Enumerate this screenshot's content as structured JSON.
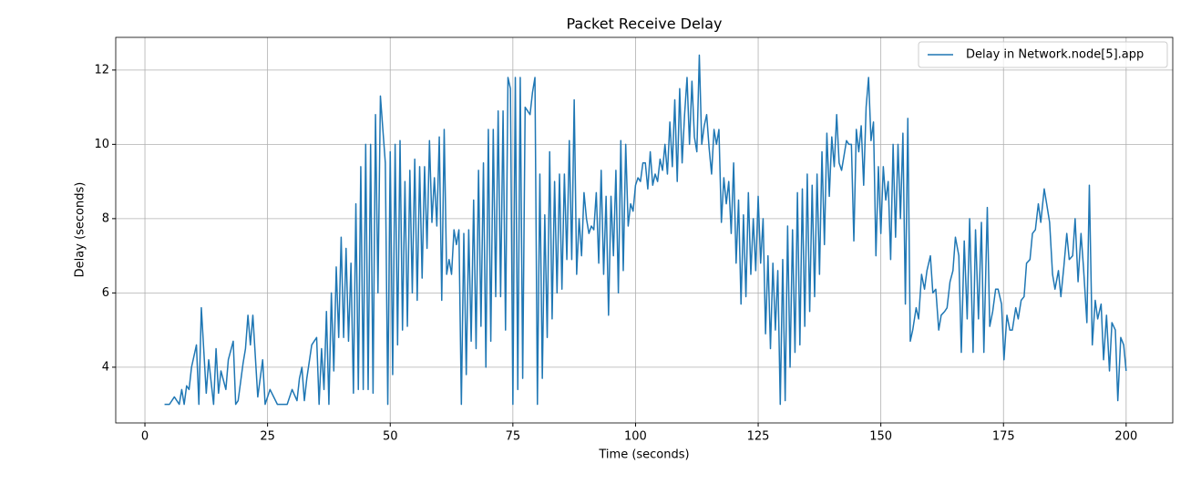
{
  "chart_data": {
    "type": "line",
    "title": "Packet Receive Delay",
    "x_label": "Time (seconds)",
    "y_label": "Delay (seconds)",
    "xlim": [
      -5.95,
      209.5
    ],
    "ylim": [
      2.5,
      12.88
    ],
    "xticks": [
      0,
      25,
      50,
      75,
      100,
      125,
      150,
      175,
      200
    ],
    "yticks": [
      4,
      6,
      8,
      10,
      12
    ],
    "grid": true,
    "legend": "upper right",
    "x": [
      4,
      5,
      6,
      7,
      7.5,
      8,
      8.5,
      9,
      9.5,
      10.5,
      11,
      11.5,
      12.5,
      13,
      14,
      14.5,
      15,
      15.5,
      16.5,
      17,
      18,
      18.5,
      19,
      20,
      20.5,
      21,
      21.5,
      22,
      23,
      24,
      24.5,
      25.5,
      27,
      29,
      30,
      31,
      31.5,
      32,
      32.5,
      33,
      34,
      35,
      35.5,
      36,
      36.5,
      37,
      37.5,
      38,
      38.5,
      39,
      39.5,
      40,
      40.5,
      41,
      41.5,
      42,
      42.5,
      43,
      43.5,
      44,
      44.5,
      45,
      45.5,
      46,
      46.5,
      47,
      47.5,
      48,
      48.5,
      49,
      49.5,
      50,
      50.5,
      51,
      51.5,
      52,
      52.5,
      53,
      53.5,
      54,
      54.5,
      55,
      55.5,
      56,
      56.5,
      57,
      57.5,
      58,
      58.5,
      59,
      59.5,
      60,
      60.5,
      61,
      61.5,
      62,
      62.5,
      63,
      63.5,
      64,
      64.5,
      65,
      65.5,
      66,
      66.5,
      67,
      67.5,
      68,
      68.5,
      69,
      69.5,
      70,
      70.5,
      71,
      71.5,
      72,
      72.5,
      73,
      73.5,
      74,
      74.5,
      75,
      75.5,
      76,
      76.5,
      77,
      77.5,
      78,
      78.5,
      79,
      79.5,
      80,
      80.5,
      81,
      81.5,
      82,
      82.5,
      83,
      83.5,
      84,
      84.5,
      85,
      85.5,
      86,
      86.5,
      87,
      87.5,
      88,
      88.5,
      89,
      89.5,
      90,
      90.5,
      91,
      91.5,
      92,
      92.5,
      93,
      93.5,
      94,
      94.5,
      95,
      95.5,
      96,
      96.5,
      97,
      97.5,
      98,
      98.5,
      99,
      99.5,
      100,
      100.5,
      101,
      101.5,
      102,
      102.5,
      103,
      103.5,
      104,
      104.5,
      105,
      105.5,
      106,
      106.5,
      107,
      107.5,
      108,
      108.5,
      109,
      109.5,
      110,
      110.5,
      111,
      111.5,
      112,
      112.5,
      113,
      113.5,
      114,
      114.5,
      115,
      115.5,
      116,
      116.5,
      117,
      117.5,
      118,
      118.5,
      119,
      119.5,
      120,
      120.5,
      121,
      121.5,
      122,
      122.5,
      123,
      123.5,
      124,
      124.5,
      125,
      125.5,
      126,
      126.5,
      127,
      127.5,
      128,
      128.5,
      129,
      129.5,
      130,
      130.5,
      131,
      131.5,
      132,
      132.5,
      133,
      133.5,
      134,
      134.5,
      135,
      135.5,
      136,
      136.5,
      137,
      137.5,
      138,
      138.5,
      139,
      139.5,
      140,
      140.5,
      141,
      141.5,
      142,
      142.5,
      143,
      143.5,
      144,
      144.5,
      145,
      145.5,
      146,
      146.5,
      147,
      147.5,
      148,
      148.5,
      149,
      149.5,
      150,
      150.5,
      151,
      151.5,
      152,
      152.5,
      153,
      153.5,
      154,
      154.5,
      155,
      155.5,
      156,
      156.5,
      157.2,
      157.7,
      158.3,
      158.9,
      159.4,
      160.1,
      160.6,
      161.2,
      161.8,
      162.3,
      163.0,
      163.5,
      164.1,
      164.7,
      165.2,
      165.9,
      166.4,
      167.0,
      167.6,
      168.1,
      168.8,
      169.3,
      169.9,
      170.5,
      171.0,
      171.7,
      172.2,
      172.8,
      173.4,
      173.9,
      174.6,
      175.1,
      175.7,
      176.3,
      176.8,
      177.5,
      178.0,
      178.6,
      179.2,
      179.7,
      180.4,
      180.9,
      181.5,
      182.1,
      182.6,
      183.3,
      183.8,
      184.4,
      185.0,
      185.5,
      186.2,
      186.7,
      187.3,
      187.9,
      188.4,
      189.1,
      189.6,
      190.2,
      190.8,
      191.3,
      192.0,
      192.5,
      193.1,
      193.7,
      194.2,
      194.9,
      195.4,
      196.0,
      196.6,
      197.1,
      197.8,
      198.3,
      198.9,
      199.5,
      200.0
    ],
    "series": [
      {
        "name": "Delay in Network.node[5].app",
        "color": "#1f77b4",
        "values": [
          3.0,
          3.0,
          3.2,
          3.0,
          3.4,
          3.0,
          3.5,
          3.4,
          4.0,
          4.6,
          3.0,
          5.6,
          3.3,
          4.2,
          3.0,
          4.5,
          3.3,
          3.9,
          3.4,
          4.2,
          4.7,
          3.0,
          3.1,
          4.1,
          4.5,
          5.4,
          4.6,
          5.4,
          3.2,
          4.2,
          3.0,
          3.4,
          3.0,
          3.0,
          3.4,
          3.1,
          3.7,
          4.0,
          3.1,
          3.7,
          4.6,
          4.8,
          3.0,
          4.5,
          3.4,
          5.5,
          3.0,
          6.0,
          3.9,
          6.7,
          4.8,
          7.5,
          4.8,
          7.2,
          4.7,
          6.8,
          3.3,
          8.4,
          3.4,
          9.4,
          3.4,
          10.0,
          3.4,
          10.0,
          3.3,
          10.8,
          6.0,
          11.3,
          10.4,
          9.5,
          3.0,
          9.8,
          3.8,
          10.0,
          4.6,
          10.1,
          5.0,
          9.0,
          5.1,
          9.3,
          6.0,
          9.6,
          5.8,
          9.4,
          6.4,
          9.4,
          7.2,
          10.1,
          7.9,
          9.1,
          7.8,
          10.2,
          5.8,
          10.4,
          6.5,
          6.9,
          6.5,
          7.7,
          7.3,
          7.7,
          3.0,
          7.6,
          3.8,
          7.7,
          4.7,
          8.5,
          4.5,
          9.3,
          5.1,
          9.5,
          4.0,
          10.4,
          4.7,
          10.4,
          5.9,
          10.9,
          5.9,
          10.9,
          5.0,
          11.8,
          11.5,
          3.0,
          11.8,
          3.4,
          11.8,
          3.7,
          11.0,
          10.9,
          10.8,
          11.4,
          11.8,
          3.0,
          9.2,
          3.7,
          8.1,
          4.8,
          9.8,
          5.3,
          9.0,
          6.0,
          9.2,
          6.1,
          9.2,
          6.9,
          10.1,
          6.9,
          11.2,
          6.5,
          8.0,
          7.0,
          8.7,
          8.0,
          7.6,
          7.8,
          7.7,
          8.7,
          6.8,
          9.3,
          6.5,
          8.6,
          5.4,
          8.6,
          7.0,
          9.3,
          6.0,
          10.1,
          6.6,
          10.0,
          7.8,
          8.4,
          8.2,
          8.9,
          9.1,
          9.0,
          9.5,
          9.5,
          8.8,
          9.8,
          8.9,
          9.2,
          9.0,
          9.6,
          9.3,
          10.0,
          9.2,
          10.6,
          9.4,
          11.2,
          9.0,
          11.5,
          9.5,
          10.8,
          11.8,
          10.0,
          11.7,
          10.2,
          9.8,
          12.4,
          10.0,
          10.5,
          10.8,
          9.9,
          9.2,
          10.4,
          10.0,
          10.4,
          7.9,
          9.1,
          8.4,
          9.0,
          7.6,
          9.5,
          6.8,
          8.5,
          5.7,
          8.1,
          5.9,
          8.7,
          6.5,
          8.0,
          6.6,
          8.6,
          6.8,
          8.0,
          4.9,
          7.0,
          4.5,
          6.8,
          5.0,
          6.6,
          3.0,
          6.9,
          3.1,
          7.8,
          4.0,
          7.7,
          4.4,
          8.7,
          4.6,
          8.8,
          5.1,
          9.2,
          5.5,
          8.9,
          5.9,
          9.2,
          6.5,
          9.8,
          7.3,
          10.3,
          8.6,
          10.2,
          9.4,
          10.8,
          9.5,
          9.3,
          9.7,
          10.1,
          10.0,
          10.0,
          7.4,
          10.4,
          9.8,
          10.5,
          8.9,
          11.0,
          11.8,
          10.1,
          10.6,
          7.0,
          9.4,
          7.6,
          9.4,
          8.5,
          9.0,
          6.9,
          10.0,
          7.5,
          10.0,
          8.0,
          10.3,
          5.7,
          10.7,
          4.7,
          5.0,
          5.6,
          5.3,
          6.5,
          6.1,
          6.6,
          7.0,
          6.0,
          6.1,
          5.0,
          5.4,
          5.5,
          5.6,
          6.3,
          6.6,
          7.5,
          7.0,
          4.4,
          7.4,
          5.3,
          8.0,
          4.4,
          7.7,
          5.3,
          7.9,
          4.4,
          8.3,
          5.1,
          5.5,
          6.1,
          6.1,
          5.7,
          4.2,
          5.4,
          5.0,
          5.0,
          5.6,
          5.3,
          5.8,
          5.9,
          6.8,
          6.9,
          7.6,
          7.7,
          8.4,
          7.9,
          8.8,
          8.4,
          7.9,
          6.5,
          6.1,
          6.6,
          5.9,
          6.7,
          7.6,
          6.9,
          7.0,
          8.0,
          6.3,
          7.6,
          6.7,
          5.2,
          8.9,
          4.6,
          5.8,
          5.3,
          5.7,
          4.2,
          5.4,
          3.9,
          5.2,
          5.0,
          3.1,
          4.8,
          4.6,
          3.9
        ]
      }
    ]
  }
}
